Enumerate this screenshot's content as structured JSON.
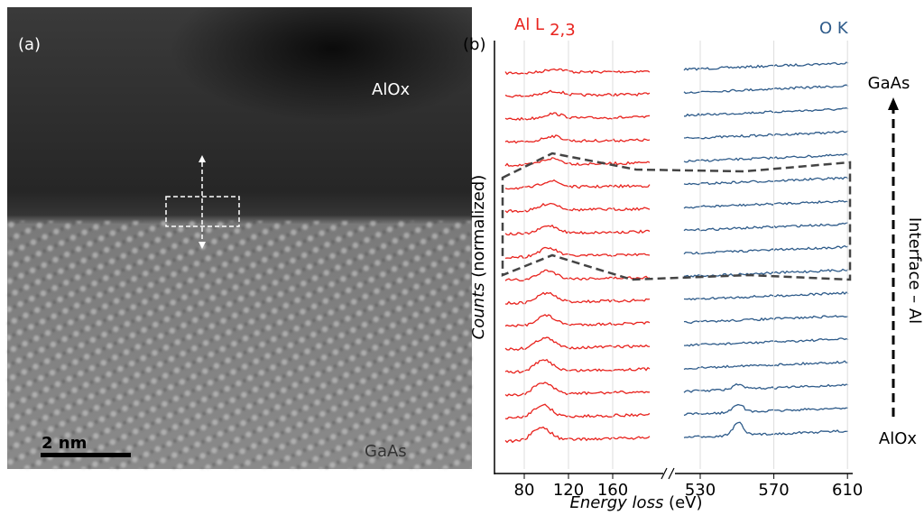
{
  "panel_a": {
    "label": "(a)",
    "top_label": "AlOx",
    "bottom_label": "GaAs",
    "scale_bar": "2 nm"
  },
  "panel_b": {
    "label": "(b)",
    "edge_left": "Al L",
    "edge_left_sub": "2,3",
    "edge_right": "O K",
    "y_label_italic": "Counts",
    "y_label_rest": " (normalized)",
    "x_label_italic": "Energy loss",
    "x_label_rest": " (eV)",
    "xticks_left": [
      80,
      120,
      160
    ],
    "xticks_right": [
      530,
      570,
      610
    ],
    "arrow_top": "GaAs",
    "arrow_bottom": "AlOx",
    "arrow_label": "Interface – Al"
  }
}
